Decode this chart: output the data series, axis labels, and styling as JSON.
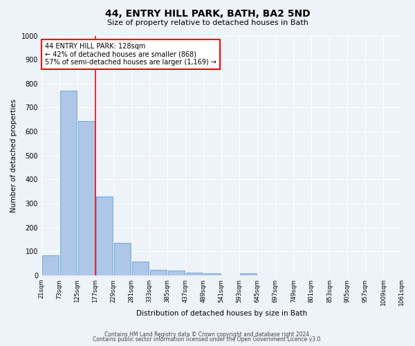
{
  "title": "44, ENTRY HILL PARK, BATH, BA2 5ND",
  "subtitle": "Size of property relative to detached houses in Bath",
  "xlabel": "Distribution of detached houses by size in Bath",
  "ylabel": "Number of detached properties",
  "bar_values": [
    85,
    770,
    645,
    330,
    135,
    58,
    23,
    20,
    12,
    10,
    0,
    10,
    0,
    0,
    0,
    0,
    0,
    0,
    0,
    0
  ],
  "bin_labels": [
    "21sqm",
    "73sqm",
    "125sqm",
    "177sqm",
    "229sqm",
    "281sqm",
    "333sqm",
    "385sqm",
    "437sqm",
    "489sqm",
    "541sqm",
    "593sqm",
    "645sqm",
    "697sqm",
    "749sqm",
    "801sqm",
    "853sqm",
    "905sqm",
    "957sqm",
    "1009sqm",
    "1061sqm"
  ],
  "bar_color": "#aec6e8",
  "bar_edge_color": "#5a9fd4",
  "vline_color": "red",
  "vline_position": 2.5,
  "annotation_text": "44 ENTRY HILL PARK: 128sqm\n← 42% of detached houses are smaller (868)\n57% of semi-detached houses are larger (1,169) →",
  "annotation_box_color": "white",
  "annotation_box_edge_color": "red",
  "ylim": [
    0,
    1000
  ],
  "yticks": [
    0,
    100,
    200,
    300,
    400,
    500,
    600,
    700,
    800,
    900,
    1000
  ],
  "footer_line1": "Contains HM Land Registry data © Crown copyright and database right 2024.",
  "footer_line2": "Contains public sector information licensed under the Open Government Licence v3.0.",
  "background_color": "#eef2f9",
  "title_fontsize": 10,
  "subtitle_fontsize": 8,
  "ylabel_fontsize": 7.5,
  "xlabel_fontsize": 7.5,
  "ytick_fontsize": 7,
  "xtick_fontsize": 6,
  "footer_fontsize": 5.5,
  "annot_fontsize": 7
}
